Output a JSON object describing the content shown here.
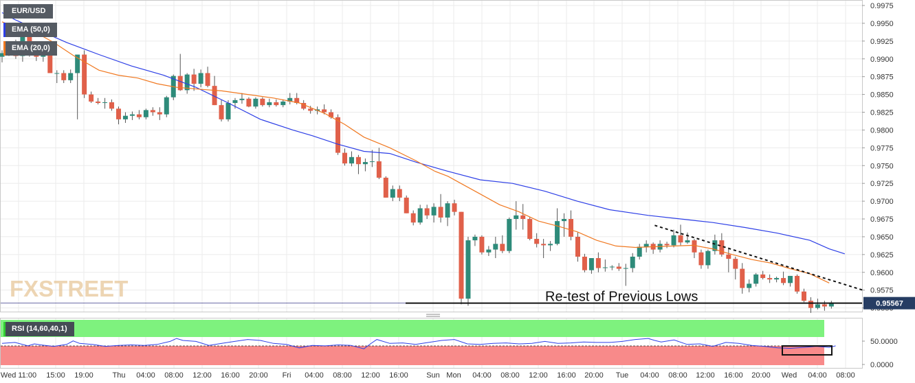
{
  "chart_data": {
    "type": "candlestick",
    "symbol": "EUR/USD",
    "indicators": [
      {
        "label": "EMA (50,0)",
        "color": "#2c3ee6"
      },
      {
        "label": "EMA (20,0)",
        "color": "#f07820"
      }
    ],
    "y_ticks": [
      "0.9975",
      "0.9950",
      "0.9925",
      "0.9900",
      "0.9875",
      "0.9850",
      "0.9825",
      "0.9800",
      "0.9775",
      "0.9750",
      "0.9725",
      "0.9700",
      "0.9675",
      "0.9650",
      "0.9625",
      "0.9600",
      "0.9575",
      "0.9550"
    ],
    "ylim": [
      0.9537,
      0.9983
    ],
    "x_ticks": [
      "Wed 11:00",
      "15:00",
      "19:00",
      "Thu",
      "04:00",
      "08:00",
      "12:00",
      "16:00",
      "20:00",
      "Fri",
      "04:00",
      "08:00",
      "12:00",
      "16:00",
      "Sun",
      "Mon",
      "04:00",
      "08:00",
      "12:00",
      "16:00",
      "20:00",
      "Tue",
      "04:00",
      "08:00",
      "12:00",
      "16:00",
      "20:00",
      "Wed",
      "04:00",
      "08:00"
    ],
    "last_price": "0.95567",
    "annotation": "Re-test of Previous Lows",
    "candles": [
      [
        0.9903,
        0.9912,
        0.9895,
        0.9908
      ],
      [
        0.9908,
        0.9921,
        0.9904,
        0.9918
      ],
      [
        0.9918,
        0.9927,
        0.99,
        0.9904
      ],
      [
        0.9904,
        0.9941,
        0.9896,
        0.9932
      ],
      [
        0.9932,
        0.9936,
        0.9903,
        0.991
      ],
      [
        0.991,
        0.9918,
        0.9897,
        0.9903
      ],
      [
        0.9903,
        0.9914,
        0.9896,
        0.9909
      ],
      [
        0.9909,
        0.9913,
        0.988,
        0.988
      ],
      [
        0.988,
        0.9884,
        0.9866,
        0.988
      ],
      [
        0.988,
        0.9884,
        0.9866,
        0.987
      ],
      [
        0.987,
        0.9885,
        0.9866,
        0.988
      ],
      [
        0.988,
        0.9905,
        0.9815,
        0.9906
      ],
      [
        0.9906,
        0.9912,
        0.9845,
        0.985
      ],
      [
        0.985,
        0.9854,
        0.9838,
        0.984
      ],
      [
        0.984,
        0.9845,
        0.9836,
        0.9838
      ],
      [
        0.9838,
        0.9845,
        0.983,
        0.9839
      ],
      [
        0.9839,
        0.9843,
        0.9827,
        0.983
      ],
      [
        0.983,
        0.9833,
        0.9808,
        0.9815
      ],
      [
        0.9815,
        0.9825,
        0.981,
        0.982
      ],
      [
        0.982,
        0.9826,
        0.9814,
        0.9822
      ],
      [
        0.9822,
        0.9828,
        0.9815,
        0.9818
      ],
      [
        0.9818,
        0.983,
        0.9815,
        0.9828
      ],
      [
        0.9828,
        0.9832,
        0.982,
        0.9825
      ],
      [
        0.9825,
        0.9832,
        0.9814,
        0.9822
      ],
      [
        0.9822,
        0.9848,
        0.9818,
        0.9846
      ],
      [
        0.9846,
        0.9878,
        0.9842,
        0.9876
      ],
      [
        0.9876,
        0.9907,
        0.9855,
        0.9856
      ],
      [
        0.9856,
        0.988,
        0.9851,
        0.9878
      ],
      [
        0.9878,
        0.9886,
        0.9855,
        0.9865
      ],
      [
        0.9865,
        0.9885,
        0.986,
        0.988
      ],
      [
        0.988,
        0.9889,
        0.986,
        0.9862
      ],
      [
        0.9862,
        0.9876,
        0.9835,
        0.9835
      ],
      [
        0.9835,
        0.9842,
        0.9812,
        0.9815
      ],
      [
        0.9815,
        0.9842,
        0.9812,
        0.9838
      ],
      [
        0.9838,
        0.9845,
        0.983,
        0.9842
      ],
      [
        0.9842,
        0.9852,
        0.9837,
        0.9844
      ],
      [
        0.9844,
        0.9846,
        0.9832,
        0.9833
      ],
      [
        0.9833,
        0.9846,
        0.983,
        0.9844
      ],
      [
        0.9844,
        0.9846,
        0.9833,
        0.9835
      ],
      [
        0.9835,
        0.9844,
        0.9832,
        0.9839
      ],
      [
        0.9839,
        0.9843,
        0.9833,
        0.9835
      ],
      [
        0.9835,
        0.9843,
        0.9832,
        0.984
      ],
      [
        0.984,
        0.9852,
        0.9836,
        0.9845
      ],
      [
        0.9845,
        0.9852,
        0.9836,
        0.9838
      ],
      [
        0.9838,
        0.9842,
        0.9828,
        0.983
      ],
      [
        0.983,
        0.9834,
        0.9823,
        0.9827
      ],
      [
        0.9827,
        0.9833,
        0.9822,
        0.9829
      ],
      [
        0.9829,
        0.9836,
        0.9822,
        0.9825
      ],
      [
        0.9825,
        0.9829,
        0.9816,
        0.9818
      ],
      [
        0.9818,
        0.9822,
        0.9765,
        0.9768
      ],
      [
        0.9768,
        0.9774,
        0.975,
        0.9753
      ],
      [
        0.9753,
        0.977,
        0.9749,
        0.9762
      ],
      [
        0.9762,
        0.9765,
        0.9738,
        0.9752
      ],
      [
        0.9752,
        0.976,
        0.9742,
        0.9755
      ],
      [
        0.9755,
        0.9772,
        0.9748,
        0.9756
      ],
      [
        0.9756,
        0.9775,
        0.9731,
        0.9733
      ],
      [
        0.9733,
        0.9735,
        0.9705,
        0.9705
      ],
      [
        0.9705,
        0.9722,
        0.97,
        0.9717
      ],
      [
        0.9717,
        0.9722,
        0.97,
        0.9705
      ],
      [
        0.9705,
        0.9708,
        0.9683,
        0.9683
      ],
      [
        0.9683,
        0.9687,
        0.9666,
        0.967
      ],
      [
        0.967,
        0.9695,
        0.9667,
        0.969
      ],
      [
        0.969,
        0.9695,
        0.9675,
        0.968
      ],
      [
        0.968,
        0.9697,
        0.967,
        0.9692
      ],
      [
        0.9692,
        0.971,
        0.967,
        0.9677
      ],
      [
        0.9677,
        0.97,
        0.9665,
        0.9697
      ],
      [
        0.9697,
        0.9702,
        0.968,
        0.9685
      ],
      [
        0.9685,
        0.9685,
        0.9555,
        0.9563
      ],
      [
        0.9563,
        0.965,
        0.9553,
        0.9645
      ],
      [
        0.9645,
        0.9653,
        0.9637,
        0.965
      ],
      [
        0.965,
        0.9652,
        0.9625,
        0.9628
      ],
      [
        0.9628,
        0.9637,
        0.9623,
        0.9632
      ],
      [
        0.9632,
        0.965,
        0.962,
        0.964
      ],
      [
        0.964,
        0.9652,
        0.9627,
        0.963
      ],
      [
        0.963,
        0.9677,
        0.9627,
        0.9675
      ],
      [
        0.9675,
        0.97,
        0.966,
        0.968
      ],
      [
        0.968,
        0.9696,
        0.966,
        0.9675
      ],
      [
        0.9675,
        0.9678,
        0.9645,
        0.9647
      ],
      [
        0.9647,
        0.9655,
        0.9635,
        0.964
      ],
      [
        0.964,
        0.9647,
        0.962,
        0.9638
      ],
      [
        0.9638,
        0.9644,
        0.963,
        0.964
      ],
      [
        0.964,
        0.969,
        0.9638,
        0.9672
      ],
      [
        0.9672,
        0.9683,
        0.965,
        0.9675
      ],
      [
        0.9675,
        0.9687,
        0.9645,
        0.965
      ],
      [
        0.965,
        0.9656,
        0.9615,
        0.9622
      ],
      [
        0.9622,
        0.9626,
        0.96,
        0.9603
      ],
      [
        0.9603,
        0.962,
        0.9598,
        0.962
      ],
      [
        0.962,
        0.9628,
        0.96,
        0.9606
      ],
      [
        0.9606,
        0.9618,
        0.9601,
        0.9607
      ],
      [
        0.9607,
        0.961,
        0.9603,
        0.9608
      ],
      [
        0.9608,
        0.9613,
        0.9602,
        0.9605
      ],
      [
        0.9605,
        0.9612,
        0.9581,
        0.9606
      ],
      [
        0.9606,
        0.9627,
        0.96,
        0.9622
      ],
      [
        0.9622,
        0.964,
        0.9618,
        0.9636
      ],
      [
        0.9636,
        0.9645,
        0.9628,
        0.964
      ],
      [
        0.964,
        0.9642,
        0.9626,
        0.9632
      ],
      [
        0.9632,
        0.9645,
        0.9628,
        0.964
      ],
      [
        0.964,
        0.9643,
        0.9634,
        0.9638
      ],
      [
        0.9638,
        0.966,
        0.9635,
        0.9652
      ],
      [
        0.9652,
        0.9667,
        0.9638,
        0.9642
      ],
      [
        0.9642,
        0.9656,
        0.964,
        0.9645
      ],
      [
        0.9645,
        0.9647,
        0.962,
        0.9628
      ],
      [
        0.9628,
        0.9632,
        0.9605,
        0.961
      ],
      [
        0.961,
        0.9632,
        0.9605,
        0.963
      ],
      [
        0.963,
        0.9653,
        0.9625,
        0.9645
      ],
      [
        0.9645,
        0.9655,
        0.9622,
        0.9625
      ],
      [
        0.9625,
        0.9635,
        0.96,
        0.9619
      ],
      [
        0.9619,
        0.9622,
        0.959,
        0.9605
      ],
      [
        0.9605,
        0.9613,
        0.957,
        0.9578
      ],
      [
        0.9578,
        0.959,
        0.9572,
        0.9584
      ],
      [
        0.9584,
        0.9599,
        0.958,
        0.9597
      ],
      [
        0.9597,
        0.9602,
        0.959,
        0.9592
      ],
      [
        0.9592,
        0.9597,
        0.9585,
        0.959
      ],
      [
        0.959,
        0.9594,
        0.9586,
        0.9592
      ],
      [
        0.9592,
        0.9601,
        0.9582,
        0.9585
      ],
      [
        0.9585,
        0.9595,
        0.958,
        0.9595
      ],
      [
        0.9595,
        0.9597,
        0.957,
        0.9573
      ],
      [
        0.9573,
        0.9577,
        0.9558,
        0.956
      ],
      [
        0.956,
        0.9565,
        0.9543,
        0.955
      ],
      [
        0.955,
        0.9563,
        0.9548,
        0.9555
      ],
      [
        0.9555,
        0.956,
        0.9546,
        0.9552
      ],
      [
        0.9552,
        0.956,
        0.9549,
        0.9557
      ]
    ],
    "ema50": [
      [
        0,
        0.9965
      ],
      [
        10,
        0.9955
      ],
      [
        25,
        0.9943
      ],
      [
        50,
        0.9923
      ],
      [
        75,
        0.9906
      ],
      [
        100,
        0.989
      ],
      [
        125,
        0.9877
      ],
      [
        150,
        0.986
      ],
      [
        175,
        0.9838
      ],
      [
        200,
        0.9815
      ],
      [
        225,
        0.98
      ],
      [
        240,
        0.9792
      ],
      [
        260,
        0.978
      ],
      [
        280,
        0.977
      ],
      [
        300,
        0.9767
      ],
      [
        320,
        0.9755
      ],
      [
        345,
        0.9742
      ],
      [
        370,
        0.973
      ],
      [
        395,
        0.9725
      ],
      [
        420,
        0.9714
      ],
      [
        445,
        0.97
      ],
      [
        470,
        0.9688
      ],
      [
        500,
        0.968
      ],
      [
        525,
        0.9675
      ],
      [
        550,
        0.967
      ],
      [
        575,
        0.9663
      ],
      [
        600,
        0.9655
      ],
      [
        625,
        0.9645
      ],
      [
        640,
        0.9633
      ],
      [
        652,
        0.9626
      ]
    ],
    "ema20": [
      [
        0,
        0.9952
      ],
      [
        10,
        0.9945
      ],
      [
        25,
        0.9938
      ],
      [
        40,
        0.9923
      ],
      [
        55,
        0.9905
      ],
      [
        75,
        0.9884
      ],
      [
        90,
        0.9877
      ],
      [
        105,
        0.9873
      ],
      [
        120,
        0.9865
      ],
      [
        135,
        0.986
      ],
      [
        155,
        0.9857
      ],
      [
        170,
        0.9855
      ],
      [
        190,
        0.985
      ],
      [
        210,
        0.9845
      ],
      [
        230,
        0.9838
      ],
      [
        250,
        0.9823
      ],
      [
        265,
        0.9808
      ],
      [
        280,
        0.979
      ],
      [
        300,
        0.9775
      ],
      [
        320,
        0.9757
      ],
      [
        335,
        0.9742
      ],
      [
        345,
        0.9735
      ],
      [
        355,
        0.9725
      ],
      [
        370,
        0.971
      ],
      [
        385,
        0.9695
      ],
      [
        400,
        0.9685
      ],
      [
        415,
        0.9672
      ],
      [
        430,
        0.9665
      ],
      [
        445,
        0.9657
      ],
      [
        460,
        0.9645
      ],
      [
        475,
        0.9637
      ],
      [
        490,
        0.9635
      ],
      [
        505,
        0.9636
      ],
      [
        520,
        0.9637
      ],
      [
        535,
        0.9638
      ],
      [
        550,
        0.9633
      ],
      [
        565,
        0.9625
      ],
      [
        580,
        0.9618
      ],
      [
        595,
        0.9613
      ],
      [
        610,
        0.9605
      ],
      [
        625,
        0.9598
      ],
      [
        640,
        0.9585
      ]
    ],
    "support_level": 0.95567,
    "trendline": [
      [
        505,
        0.9666
      ],
      [
        666,
        0.9575
      ]
    ],
    "rsi": {
      "label": "RSI (14,60,40,1)",
      "y_ticks": [
        "50.0000",
        "0.0000"
      ],
      "upper": 60,
      "lower": 40,
      "values": [
        [
          0,
          44
        ],
        [
          10,
          46
        ],
        [
          20,
          39
        ],
        [
          25,
          43
        ],
        [
          30,
          41
        ],
        [
          40,
          38
        ],
        [
          50,
          42
        ],
        [
          55,
          49
        ],
        [
          60,
          44
        ],
        [
          70,
          42
        ],
        [
          80,
          38
        ],
        [
          90,
          40
        ],
        [
          100,
          41
        ],
        [
          110,
          40
        ],
        [
          120,
          42
        ],
        [
          130,
          48
        ],
        [
          135,
          54
        ],
        [
          140,
          50
        ],
        [
          150,
          48
        ],
        [
          160,
          40
        ],
        [
          170,
          44
        ],
        [
          180,
          48
        ],
        [
          190,
          52
        ],
        [
          200,
          50
        ],
        [
          210,
          44
        ],
        [
          220,
          42
        ],
        [
          230,
          35
        ],
        [
          240,
          40
        ],
        [
          250,
          39
        ],
        [
          260,
          41
        ],
        [
          270,
          40
        ],
        [
          280,
          33
        ],
        [
          285,
          43
        ],
        [
          290,
          52
        ],
        [
          300,
          44
        ],
        [
          310,
          45
        ],
        [
          320,
          42
        ],
        [
          330,
          46
        ],
        [
          340,
          50
        ],
        [
          350,
          52
        ],
        [
          360,
          43
        ],
        [
          370,
          42
        ],
        [
          380,
          44
        ],
        [
          390,
          45
        ],
        [
          400,
          43
        ],
        [
          410,
          44
        ],
        [
          420,
          48
        ],
        [
          430,
          44
        ],
        [
          440,
          45
        ],
        [
          450,
          47
        ],
        [
          460,
          46
        ],
        [
          470,
          46
        ],
        [
          480,
          48
        ],
        [
          490,
          52
        ],
        [
          500,
          54
        ],
        [
          505,
          50
        ],
        [
          510,
          47
        ],
        [
          520,
          51
        ],
        [
          530,
          42
        ],
        [
          540,
          43
        ],
        [
          550,
          38
        ],
        [
          560,
          46
        ],
        [
          570,
          44
        ],
        [
          580,
          40
        ],
        [
          590,
          38
        ],
        [
          600,
          35
        ],
        [
          610,
          34
        ],
        [
          620,
          36
        ],
        [
          630,
          38
        ],
        [
          640,
          36
        ],
        [
          645,
          39
        ]
      ]
    }
  }
}
